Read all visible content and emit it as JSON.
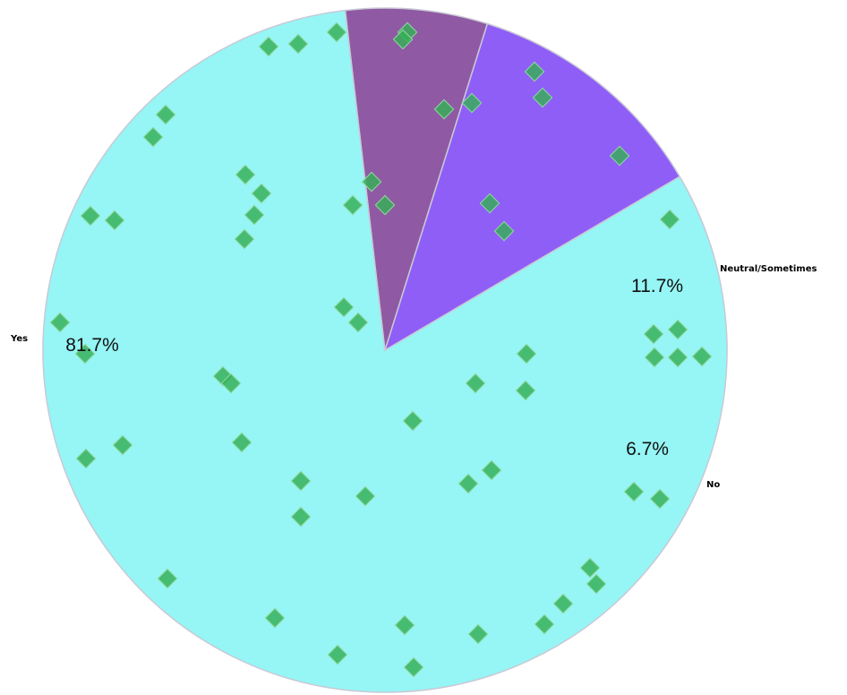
{
  "chart_data": {
    "type": "pie",
    "slices": [
      {
        "label": "Yes",
        "value": 81.7,
        "percent_label": "81.7%",
        "color": "#96f5f5"
      },
      {
        "label": "No",
        "value": 6.7,
        "percent_label": "6.7%",
        "color": "#8f5aa3"
      },
      {
        "label": "Neutral/Sometimes",
        "value": 11.7,
        "percent_label": "11.7%",
        "color": "#8f5ef7"
      }
    ],
    "legend": "none",
    "marker_color": "#35b055"
  }
}
